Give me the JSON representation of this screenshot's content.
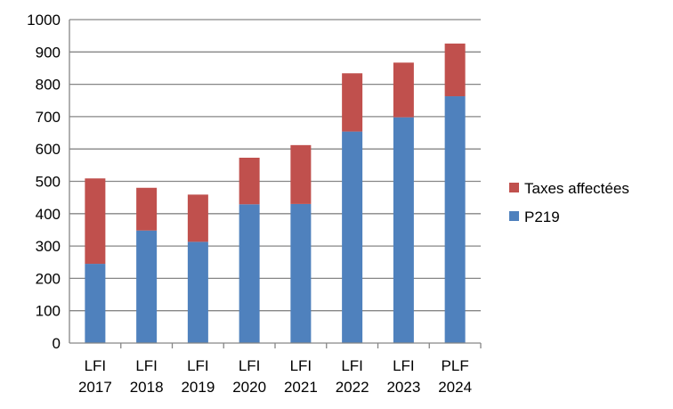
{
  "chart_data": {
    "type": "bar",
    "stacked": true,
    "title": "",
    "xlabel": "",
    "ylabel": "",
    "categories": [
      [
        "LFI",
        "2017"
      ],
      [
        "LFI",
        "2018"
      ],
      [
        "LFI",
        "2019"
      ],
      [
        "LFI",
        "2020"
      ],
      [
        "LFI",
        "2021"
      ],
      [
        "LFI",
        "2022"
      ],
      [
        "LFI",
        "2023"
      ],
      [
        "PLF",
        "2024"
      ]
    ],
    "series": [
      {
        "name": "P219",
        "color": "#4F81BD",
        "values": [
          245,
          348,
          313,
          429,
          430,
          654,
          698,
          763
        ]
      },
      {
        "name": "Taxes affectées",
        "color": "#C0504D",
        "values": [
          264,
          132,
          146,
          144,
          182,
          180,
          169,
          163
        ]
      }
    ],
    "ylim": [
      0,
      1000
    ],
    "yticks": [
      0,
      100,
      200,
      300,
      400,
      500,
      600,
      700,
      800,
      900,
      1000
    ],
    "grid": true,
    "legend": "right"
  }
}
